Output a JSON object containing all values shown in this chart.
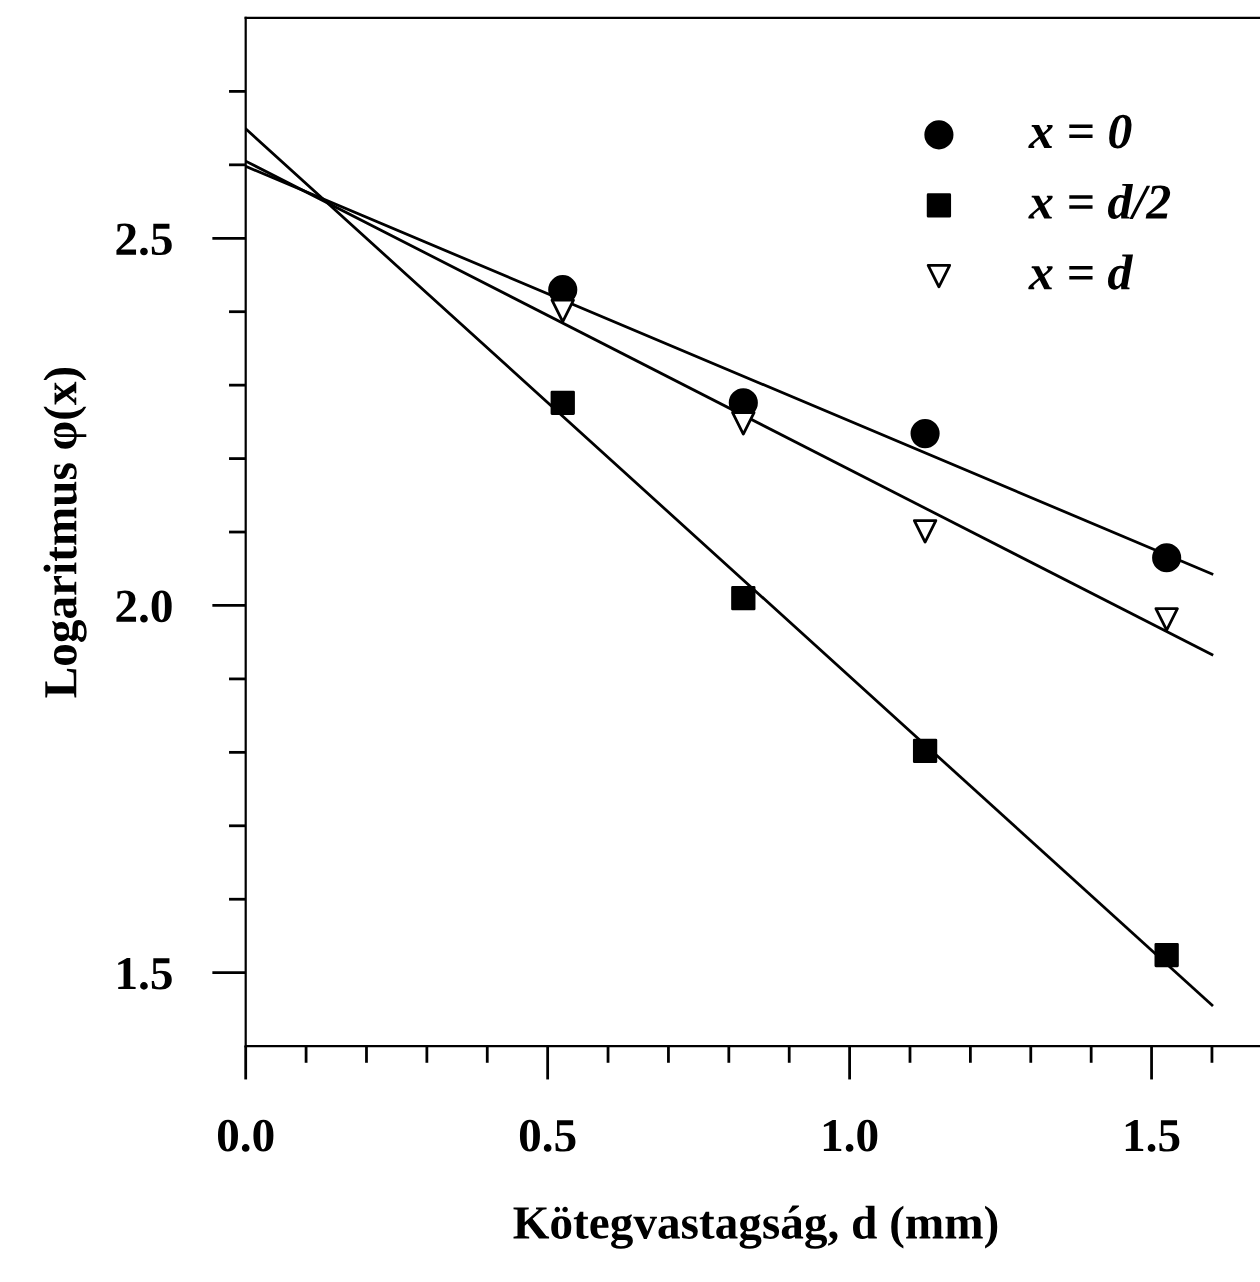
{
  "chart_data": {
    "type": "scatter",
    "xlabel": "Kötegvastagság, d (mm)",
    "ylabel": "Logaritmus φ(x)",
    "xlim": [
      0,
      1.69
    ],
    "ylim": [
      1.4,
      2.8
    ],
    "xticks": [
      {
        "value": 0,
        "label": "0.0"
      },
      {
        "value": 0.1,
        "label": null
      },
      {
        "value": 0.2,
        "label": null
      },
      {
        "value": 0.3,
        "label": null
      },
      {
        "value": 0.4,
        "label": null
      },
      {
        "value": 0.5,
        "label": "0.5"
      },
      {
        "value": 0.6,
        "label": null
      },
      {
        "value": 0.7,
        "label": null
      },
      {
        "value": 0.8,
        "label": null
      },
      {
        "value": 0.9,
        "label": null
      },
      {
        "value": 1.0,
        "label": "1.0"
      },
      {
        "value": 1.1,
        "label": null
      },
      {
        "value": 1.2,
        "label": null
      },
      {
        "value": 1.3,
        "label": null
      },
      {
        "value": 1.4,
        "label": null
      },
      {
        "value": 1.5,
        "label": "1.5"
      },
      {
        "value": 1.6,
        "label": null
      }
    ],
    "yticks": [
      {
        "value": 1.5,
        "label": "1.5"
      },
      {
        "value": 1.6,
        "label": null
      },
      {
        "value": 1.7,
        "label": null
      },
      {
        "value": 1.8,
        "label": null
      },
      {
        "value": 1.9,
        "label": null
      },
      {
        "value": 2.0,
        "label": "2.0"
      },
      {
        "value": 2.1,
        "label": null
      },
      {
        "value": 2.2,
        "label": null
      },
      {
        "value": 2.3,
        "label": null
      },
      {
        "value": 2.4,
        "label": null
      },
      {
        "value": 2.5,
        "label": "2.5"
      },
      {
        "value": 2.6,
        "label": null
      },
      {
        "value": 2.7,
        "label": null
      }
    ],
    "grid": false,
    "legend": "top right",
    "series": [
      {
        "name": "x = 0",
        "marker": "circle",
        "color": "#000000",
        "x": [
          0.525,
          0.824,
          1.125,
          1.525
        ],
        "values": [
          2.43,
          2.276,
          2.234,
          2.065
        ]
      },
      {
        "name": "x = d/2",
        "marker": "square",
        "color": "#000000",
        "x": [
          0.525,
          0.824,
          1.125,
          1.525
        ],
        "values": [
          2.276,
          2.01,
          1.802,
          1.524
        ]
      },
      {
        "name": "x = d",
        "marker": "triangle",
        "color": "#000000",
        "x": [
          0.525,
          0.824,
          1.125,
          1.525
        ],
        "values": [
          2.401,
          2.248,
          2.101,
          1.981
        ]
      },
      {
        "type": "line",
        "marker": "none",
        "line_style": "solid",
        "color": "#000000",
        "x": [
          0,
          1.6
        ],
        "values": [
          2.598,
          2.043
        ]
      },
      {
        "type": "line",
        "marker": "none",
        "line_style": "solid",
        "color": "#000000",
        "x": [
          0,
          1.6
        ],
        "values": [
          2.649,
          1.456
        ]
      },
      {
        "type": "line",
        "marker": "none",
        "line_style": "solid",
        "color": "#000000",
        "x": [
          0,
          1.6
        ],
        "values": [
          2.605,
          1.933
        ]
      }
    ]
  }
}
